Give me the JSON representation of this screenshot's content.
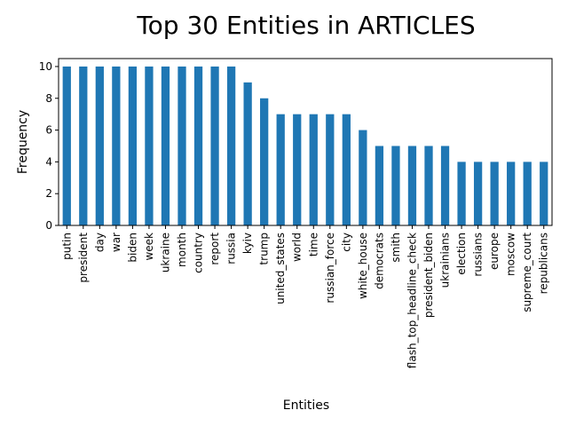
{
  "chart_data": {
    "type": "bar",
    "title": "Top 30 Entities in ARTICLES",
    "xlabel": "Entities",
    "ylabel": "Frequency",
    "ylim": [
      0,
      10.5
    ],
    "yticks": [
      0,
      2,
      4,
      6,
      8,
      10
    ],
    "grid": false,
    "legend": "none",
    "bar_color": "#1f77b4",
    "categories": [
      "putin",
      "president",
      "day",
      "war",
      "biden",
      "week",
      "ukraine",
      "month",
      "country",
      "report",
      "russia",
      "kyiv",
      "trump",
      "united_states",
      "world",
      "time",
      "russian_force",
      "city",
      "white_house",
      "democrats",
      "smith",
      "flash_top_headline_check",
      "president_biden",
      "ukrainians",
      "election",
      "russians",
      "europe",
      "moscow",
      "supreme_court",
      "republicans"
    ],
    "values": [
      10,
      10,
      10,
      10,
      10,
      10,
      10,
      10,
      10,
      10,
      10,
      9,
      8,
      7,
      7,
      7,
      7,
      7,
      6,
      5,
      5,
      5,
      5,
      5,
      4,
      4,
      4,
      4,
      4,
      4
    ]
  }
}
